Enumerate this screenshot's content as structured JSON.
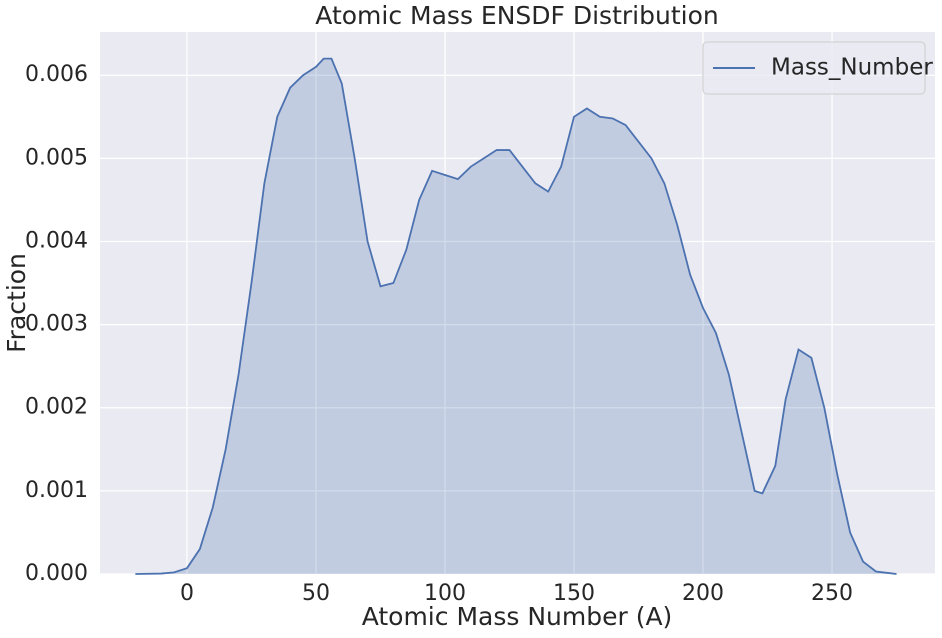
{
  "chart_data": {
    "type": "area",
    "title": "Atomic Mass ENSDF Distribution",
    "x_label": "Atomic Mass Number (A)",
    "y_label": "Fraction",
    "x": [
      -20,
      -10,
      -5,
      0,
      5,
      10,
      15,
      20,
      25,
      30,
      35,
      40,
      45,
      50,
      53,
      56,
      60,
      65,
      70,
      75,
      80,
      85,
      90,
      95,
      100,
      105,
      110,
      115,
      120,
      125,
      130,
      135,
      140,
      145,
      150,
      155,
      160,
      165,
      170,
      175,
      180,
      185,
      190,
      195,
      200,
      205,
      210,
      215,
      220,
      223,
      228,
      232,
      237,
      242,
      247,
      252,
      257,
      262,
      267,
      275
    ],
    "series": [
      {
        "name": "Mass_Number",
        "color": "#4c72b0",
        "values": [
          0,
          5e-06,
          2e-05,
          7e-05,
          0.0003,
          0.0008,
          0.0015,
          0.0024,
          0.0035,
          0.0047,
          0.0055,
          0.00585,
          0.006,
          0.0061,
          0.0062,
          0.0062,
          0.0059,
          0.005,
          0.004,
          0.00346,
          0.0035,
          0.0039,
          0.0045,
          0.00485,
          0.0048,
          0.00475,
          0.0049,
          0.005,
          0.0051,
          0.0051,
          0.0049,
          0.0047,
          0.0046,
          0.0049,
          0.0055,
          0.0056,
          0.0055,
          0.00548,
          0.0054,
          0.0052,
          0.005,
          0.0047,
          0.0042,
          0.0036,
          0.0032,
          0.0029,
          0.0024,
          0.0017,
          0.001,
          0.00097,
          0.0013,
          0.0021,
          0.0027,
          0.0026,
          0.002,
          0.0012,
          0.0005,
          0.00015,
          3e-05,
          0
        ]
      }
    ],
    "xlim": [
      -33.7,
      289.9
    ],
    "ylim": [
      0,
      0.00652
    ],
    "xticks": [
      0,
      50,
      100,
      150,
      200,
      250
    ],
    "yticks": [
      {
        "value": 0,
        "label": "0.000"
      },
      0.001,
      0.002,
      0.003,
      0.004,
      0.005,
      0.006
    ],
    "grid": true,
    "legend": "upper right",
    "background": "#eaeaf2"
  }
}
